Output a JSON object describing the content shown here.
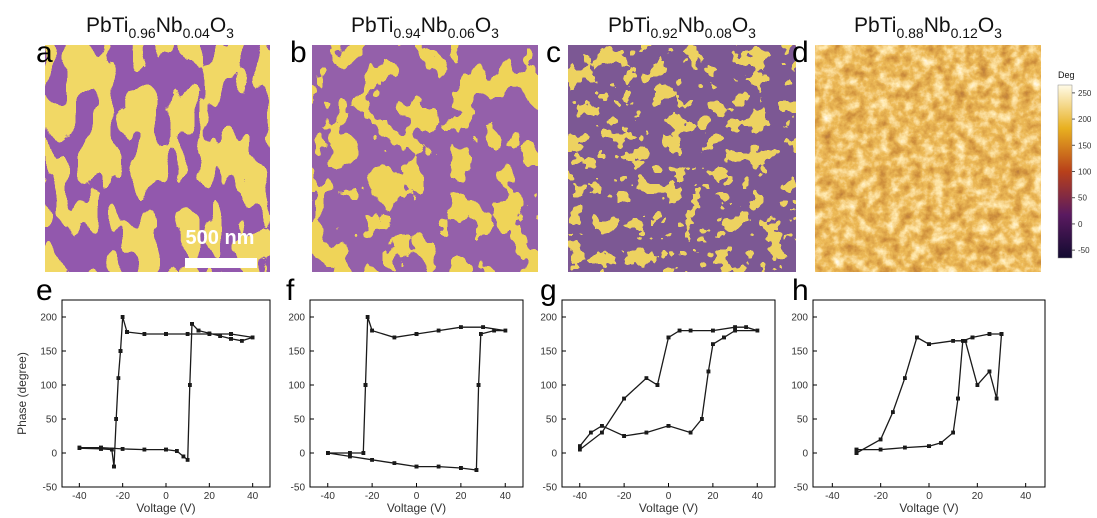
{
  "panels": [
    {
      "letter": "a",
      "formula": [
        "PbTi",
        "0.96",
        "Nb",
        "0.04",
        "O",
        "3"
      ]
    },
    {
      "letter": "b",
      "formula": [
        "PbTi",
        "0.94",
        "Nb",
        "0.06",
        "O",
        "3"
      ]
    },
    {
      "letter": "c",
      "formula": [
        "PbTi",
        "0.92",
        "Nb",
        "0.08",
        "O",
        "3"
      ]
    },
    {
      "letter": "d",
      "formula": [
        "PbTi",
        "0.88",
        "Nb",
        "0.12",
        "O",
        "3"
      ]
    }
  ],
  "scale_bar": "500 nm",
  "colorbar": {
    "label": "Deg",
    "lim": [
      -65,
      265
    ],
    "ticks": [
      -50,
      0,
      50,
      100,
      150,
      200,
      250
    ]
  },
  "chart_data": [
    {
      "type": "line",
      "panel_label": "e",
      "x_label": "Voltage (V)",
      "y_label": "Phase (degree)",
      "xlim": [
        -48,
        48
      ],
      "ylim": [
        -50,
        225
      ],
      "xticks": [
        -40,
        -20,
        0,
        20,
        40
      ],
      "yticks": [
        -50,
        0,
        50,
        100,
        150,
        200
      ],
      "series": [
        {
          "color": "#1a1a1a",
          "x": [
            -40,
            -30,
            -20,
            -10,
            0,
            5,
            8,
            10,
            11,
            12,
            15,
            20,
            25,
            30,
            35,
            40,
            30,
            20,
            10,
            0,
            -10,
            -18,
            -20,
            -21,
            -22,
            -23,
            -24,
            -25,
            -30,
            -40
          ],
          "values": [
            8,
            8,
            6,
            5,
            5,
            3,
            -5,
            -10,
            100,
            190,
            180,
            176,
            172,
            168,
            165,
            170,
            175,
            175,
            175,
            175,
            175,
            178,
            200,
            150,
            110,
            50,
            -20,
            5,
            6,
            7
          ]
        }
      ]
    },
    {
      "type": "line",
      "panel_label": "f",
      "x_label": "Voltage (V)",
      "xlim": [
        -48,
        48
      ],
      "ylim": [
        -50,
        225
      ],
      "xticks": [
        -40,
        -20,
        0,
        20,
        40
      ],
      "yticks": [
        -50,
        0,
        50,
        100,
        150,
        200
      ],
      "series": [
        {
          "color": "#1a1a1a",
          "x": [
            -40,
            -30,
            -20,
            -10,
            0,
            10,
            20,
            27,
            28,
            29,
            35,
            40,
            30,
            20,
            10,
            0,
            -10,
            -20,
            -22,
            -23,
            -24,
            -30,
            -40
          ],
          "values": [
            0,
            -5,
            -10,
            -15,
            -20,
            -20,
            -22,
            -25,
            100,
            175,
            180,
            180,
            185,
            185,
            180,
            175,
            170,
            180,
            200,
            100,
            0,
            0,
            0
          ]
        }
      ]
    },
    {
      "type": "line",
      "panel_label": "g",
      "x_label": "Voltage (V)",
      "xlim": [
        -48,
        48
      ],
      "ylim": [
        -50,
        225
      ],
      "xticks": [
        -40,
        -20,
        0,
        20,
        40
      ],
      "yticks": [
        -50,
        0,
        50,
        100,
        150,
        200
      ],
      "series": [
        {
          "color": "#1a1a1a",
          "x": [
            -40,
            -35,
            -30,
            -20,
            -10,
            0,
            10,
            15,
            18,
            20,
            25,
            30,
            40,
            35,
            30,
            20,
            10,
            5,
            0,
            -5,
            -10,
            -20,
            -30,
            -40
          ],
          "values": [
            10,
            30,
            40,
            25,
            30,
            40,
            30,
            50,
            120,
            160,
            170,
            180,
            180,
            185,
            185,
            180,
            180,
            180,
            170,
            100,
            110,
            80,
            30,
            5
          ]
        }
      ]
    },
    {
      "type": "line",
      "panel_label": "h",
      "x_label": "Voltage (V)",
      "xlim": [
        -48,
        48
      ],
      "ylim": [
        -50,
        225
      ],
      "xticks": [
        -40,
        -20,
        0,
        20,
        40
      ],
      "yticks": [
        -50,
        0,
        50,
        100,
        150,
        200
      ],
      "series": [
        {
          "color": "#1a1a1a",
          "x": [
            -30,
            -20,
            -10,
            0,
            5,
            10,
            12,
            14,
            18,
            25,
            30,
            28,
            25,
            20,
            15,
            10,
            0,
            -5,
            -10,
            -15,
            -20,
            -30
          ],
          "values": [
            5,
            5,
            8,
            10,
            15,
            30,
            80,
            165,
            170,
            175,
            175,
            80,
            120,
            100,
            165,
            165,
            160,
            170,
            110,
            60,
            20,
            0
          ]
        }
      ]
    }
  ]
}
